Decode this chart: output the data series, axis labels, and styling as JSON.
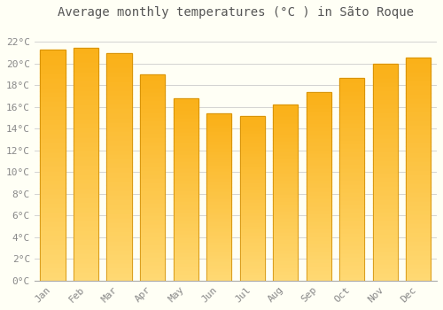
{
  "title": "Average monthly temperatures (°C ) in Sãto Roque",
  "months": [
    "Jan",
    "Feb",
    "Mar",
    "Apr",
    "May",
    "Jun",
    "Jul",
    "Aug",
    "Sep",
    "Oct",
    "Nov",
    "Dec"
  ],
  "values": [
    21.3,
    21.5,
    21.0,
    19.0,
    16.8,
    15.4,
    15.2,
    16.2,
    17.4,
    18.7,
    20.0,
    20.6
  ],
  "bar_color": "#FBB024",
  "bar_edge_color": "#CC8800",
  "bar_edge_width": 0.5,
  "background_color": "#FFFFF5",
  "grid_color": "#CCCCCC",
  "ytick_labels": [
    "0°C",
    "2°C",
    "4°C",
    "6°C",
    "8°C",
    "10°C",
    "12°C",
    "14°C",
    "16°C",
    "18°C",
    "20°C",
    "22°C"
  ],
  "ytick_values": [
    0,
    2,
    4,
    6,
    8,
    10,
    12,
    14,
    16,
    18,
    20,
    22
  ],
  "ylim": [
    0,
    23.5
  ],
  "title_fontsize": 10,
  "tick_fontsize": 8,
  "font_family": "monospace",
  "tick_color": "#888888",
  "title_color": "#555555"
}
